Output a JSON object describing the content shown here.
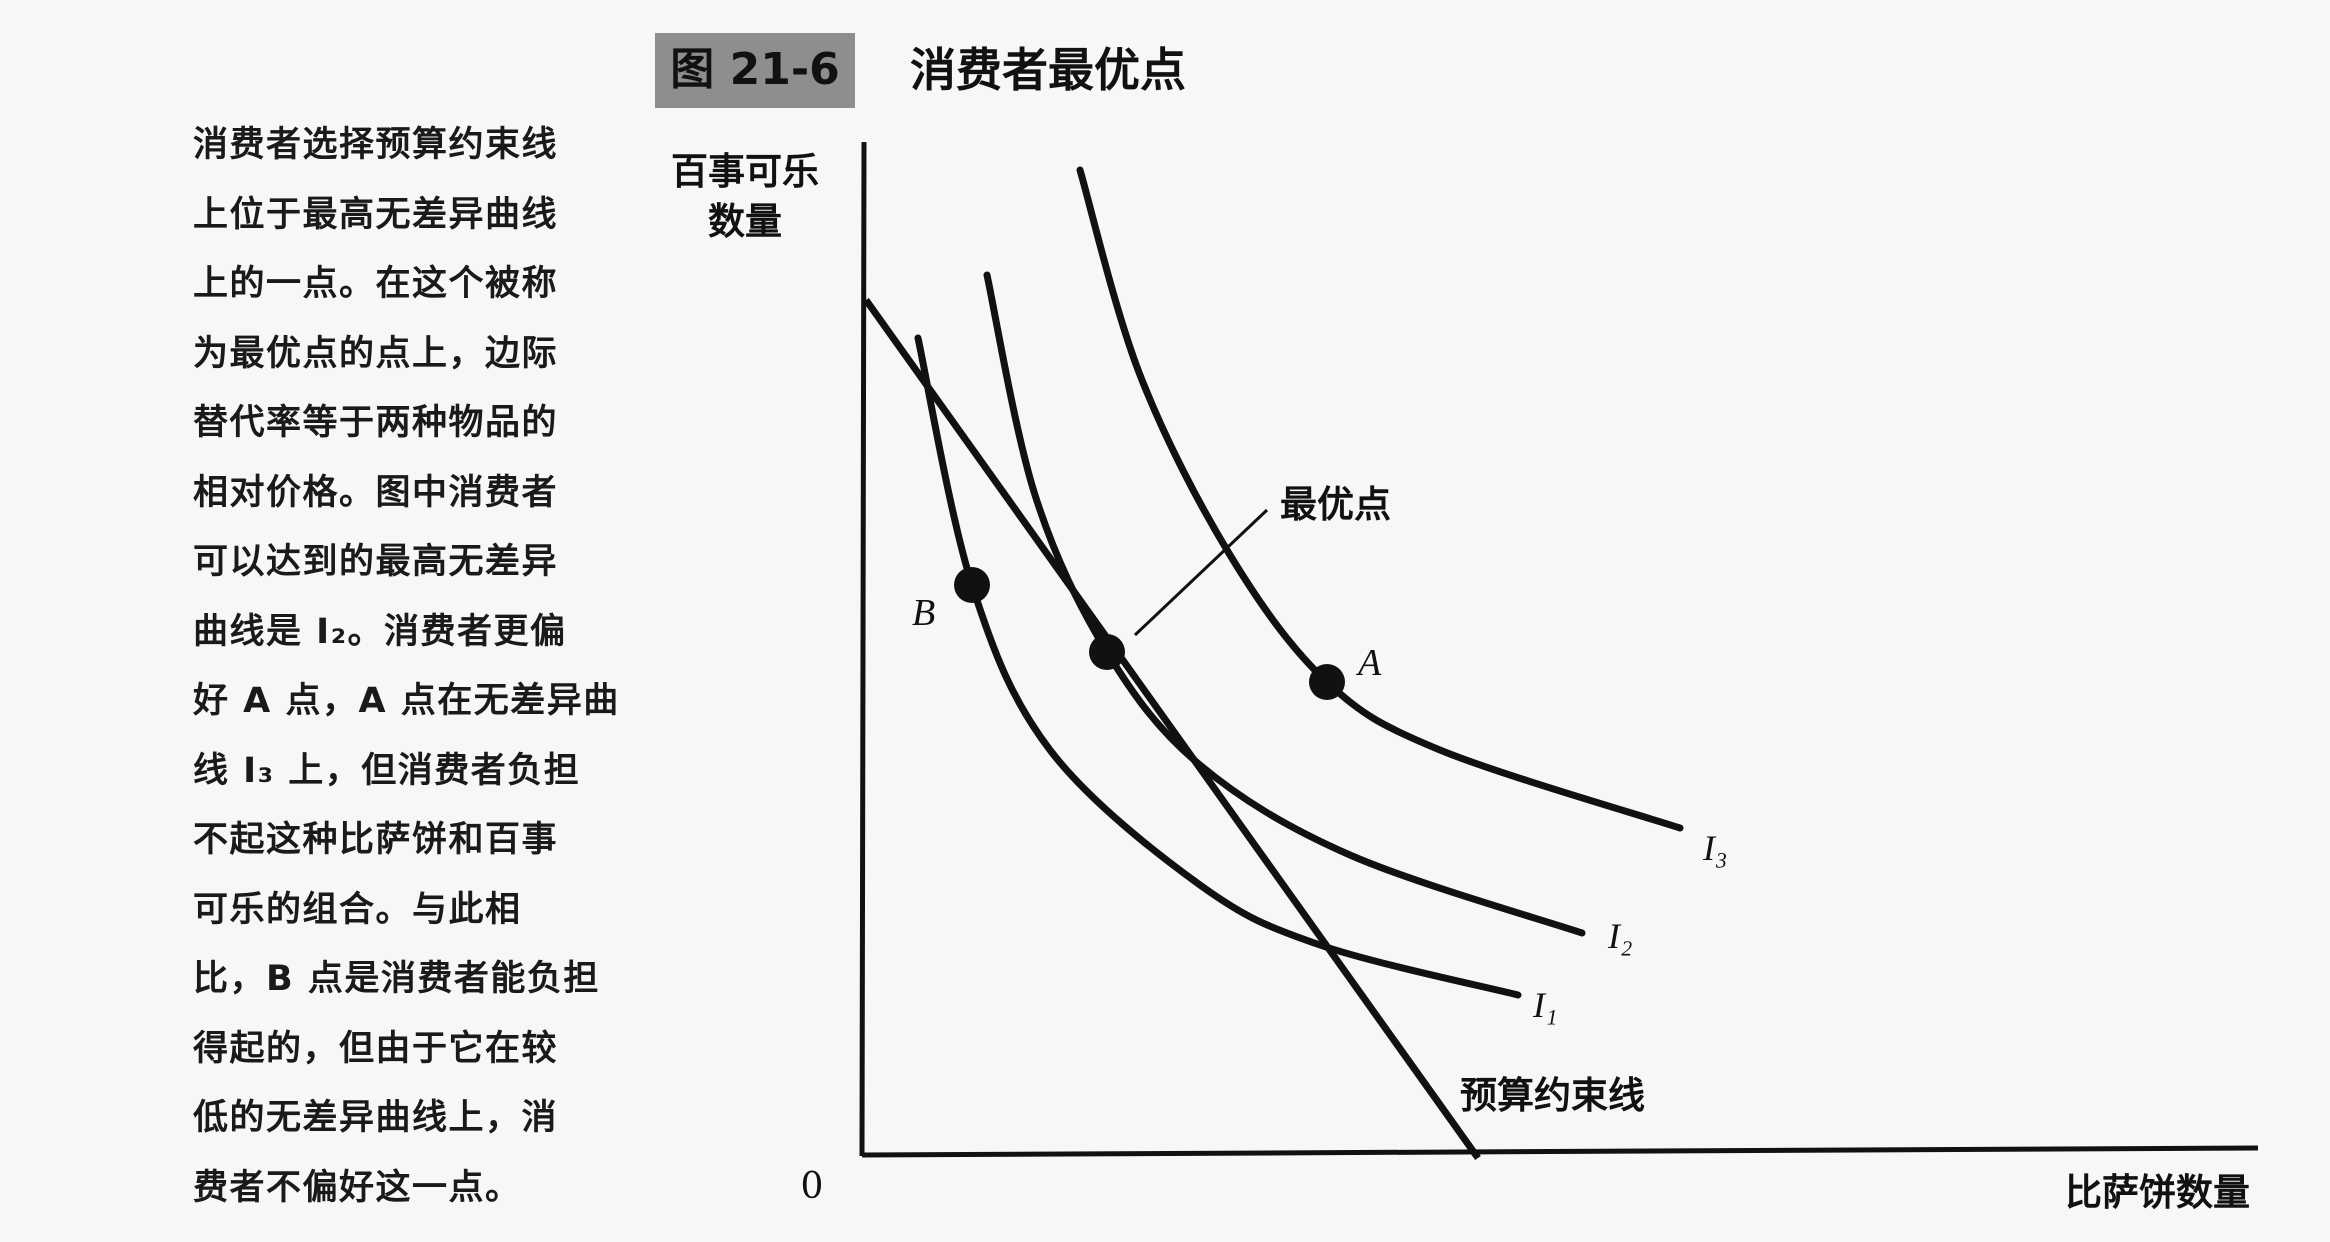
{
  "figure": {
    "number": "图 21-6",
    "title": "消费者最优点"
  },
  "caption": {
    "lines": [
      "消费者选择预算约束线",
      "上位于最高无差异曲线",
      "上的一点。在这个被称",
      "为最优点的点上，边际",
      "替代率等于两种物品的",
      "相对价格。图中消费者",
      "可以达到的最高无差异",
      "曲线是 I₂。消费者更偏",
      "好 A 点，A 点在无差异曲",
      "线 I₃ 上，但消费者负担",
      "不起这种比萨饼和百事",
      "可乐的组合。与此相",
      "比，B 点是消费者能负担",
      "得起的，但由于它在较",
      "低的无差异曲线上，消",
      "费者不偏好这一点。"
    ]
  },
  "axes": {
    "y_label": [
      "百事可乐",
      "数量"
    ],
    "x_label": "比萨饼数量",
    "origin": "0"
  },
  "labels": {
    "optimum": "最优点",
    "point_a": "A",
    "point_b": "B",
    "budget_line": "预算约束线",
    "curves": [
      "I₁",
      "I₂",
      "I₃"
    ]
  }
}
